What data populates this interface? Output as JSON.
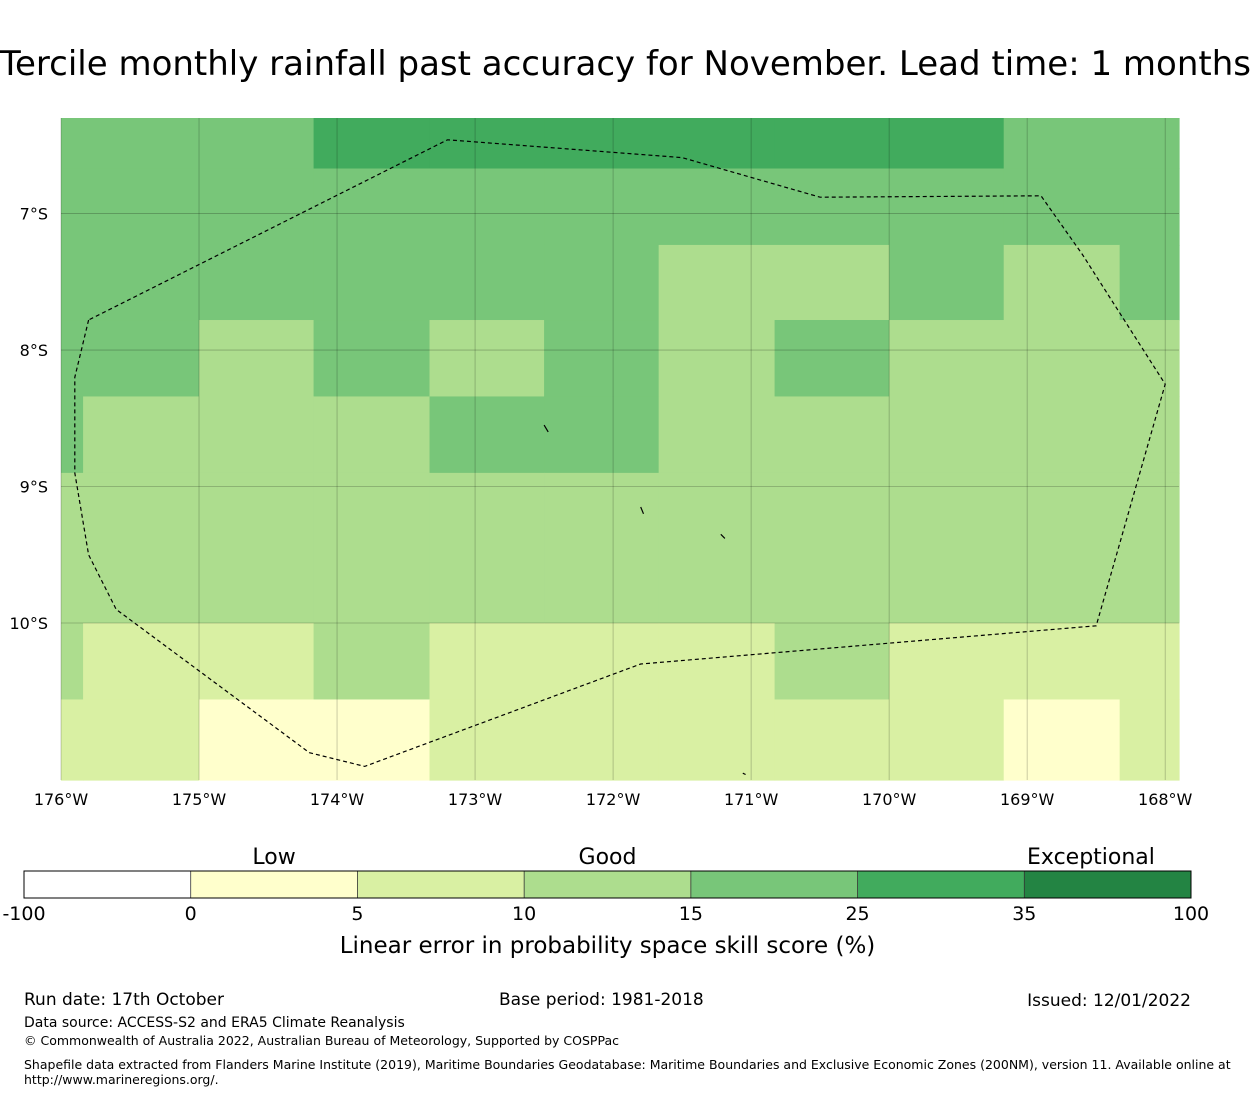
{
  "title": "Tercile monthly rainfall past accuracy for November. Lead time: 1 months",
  "chart_data": {
    "type": "heatmap",
    "title": "Tercile monthly rainfall past accuracy for November. Lead time: 1 months",
    "lon_range": [
      -176.0,
      -167.9
    ],
    "lat_range": [
      -11.15,
      -6.3
    ],
    "lat_ticks": [
      {
        "value": -7,
        "label": "7°S"
      },
      {
        "value": -8,
        "label": "8°S"
      },
      {
        "value": -9,
        "label": "9°S"
      },
      {
        "value": -10,
        "label": "10°S"
      }
    ],
    "lon_ticks": [
      {
        "value": -176,
        "label": "176°W"
      },
      {
        "value": -175,
        "label": "175°W"
      },
      {
        "value": -174,
        "label": "174°W"
      },
      {
        "value": -173,
        "label": "173°W"
      },
      {
        "value": -172,
        "label": "172°W"
      },
      {
        "value": -171,
        "label": "171°W"
      },
      {
        "value": -170,
        "label": "170°W"
      },
      {
        "value": -169,
        "label": "169°W"
      },
      {
        "value": -168,
        "label": "168°W"
      }
    ],
    "grid_lon_edges": [
      -176.0,
      -175.84,
      -175.0,
      -174.17,
      -173.33,
      -172.5,
      -171.67,
      -170.83,
      -170.0,
      -169.17,
      -168.33,
      -167.9
    ],
    "grid_lat_edges": [
      -6.3,
      -6.67,
      -7.23,
      -7.78,
      -8.34,
      -8.9,
      -10.0,
      -10.56,
      -11.15
    ],
    "cells": [
      [
        4,
        4,
        4,
        5,
        5,
        5,
        5,
        5,
        5,
        4,
        4
      ],
      [
        4,
        4,
        4,
        4,
        4,
        4,
        4,
        4,
        4,
        4,
        4
      ],
      [
        4,
        4,
        4,
        4,
        4,
        4,
        3,
        3,
        4,
        3,
        4
      ],
      [
        4,
        4,
        3,
        4,
        3,
        4,
        3,
        4,
        3,
        3,
        3
      ],
      [
        4,
        3,
        3,
        3,
        4,
        4,
        3,
        3,
        3,
        3,
        3
      ],
      [
        3,
        3,
        3,
        3,
        3,
        3,
        3,
        3,
        3,
        3,
        3
      ],
      [
        3,
        2,
        2,
        3,
        2,
        2,
        2,
        3,
        2,
        2,
        2
      ],
      [
        2,
        2,
        1,
        1,
        2,
        2,
        2,
        2,
        2,
        1,
        2
      ]
    ],
    "eez_boundary": [
      [
        -175.8,
        -7.78
      ],
      [
        -175.9,
        -8.2
      ],
      [
        -175.9,
        -8.9
      ],
      [
        -175.8,
        -9.5
      ],
      [
        -175.6,
        -9.9
      ],
      [
        -174.2,
        -10.95
      ],
      [
        -173.8,
        -11.05
      ],
      [
        -171.8,
        -10.3
      ],
      [
        -168.5,
        -10.02
      ],
      [
        -168.0,
        -8.25
      ],
      [
        -168.6,
        -7.3
      ],
      [
        -168.9,
        -6.87
      ],
      [
        -170.5,
        -6.88
      ],
      [
        -171.5,
        -6.59
      ],
      [
        -173.2,
        -6.46
      ],
      [
        -175.8,
        -7.78
      ]
    ],
    "islands": [
      [
        [
          -172.5,
          -8.55
        ],
        [
          -172.47,
          -8.6
        ]
      ],
      [
        [
          -171.8,
          -9.15
        ],
        [
          -171.78,
          -9.2
        ]
      ],
      [
        [
          -171.22,
          -9.35
        ],
        [
          -171.19,
          -9.38
        ]
      ],
      [
        [
          -171.06,
          -11.1
        ],
        [
          -171.04,
          -11.11
        ]
      ]
    ],
    "colorbar": {
      "bounds": [
        -100,
        0,
        5,
        10,
        15,
        25,
        35,
        100
      ],
      "tick_labels": [
        "-100",
        "0",
        "5",
        "10",
        "15",
        "25",
        "35",
        "100"
      ],
      "colors": [
        "#ffffff",
        "#ffffcc",
        "#d9f0a3",
        "#addd8e",
        "#78c679",
        "#41ab5d",
        "#238443"
      ],
      "category_labels": [
        "Low",
        "Good",
        "Exceptional"
      ],
      "label": "Linear error in probability space skill score (%)"
    }
  },
  "footer": {
    "run_date": "Run date: 17th October",
    "base_period": "Base period: 1981-2018",
    "issued": "Issued: 12/01/2022",
    "data_source": "Data source: ACCESS-S2 and ERA5 Climate Reanalysis",
    "copyright": "© Commonwealth of Australia 2022, Australian Bureau of Meteorology, Supported by COSPPac",
    "shapefile_line1": "Shapefile data extracted from Flanders Marine Institute (2019), Maritime Boundaries Geodatabase: Maritime Boundaries and Exclusive Economic Zones (200NM), version 11. Available online at",
    "shapefile_line2": "http://www.marineregions.org/."
  }
}
